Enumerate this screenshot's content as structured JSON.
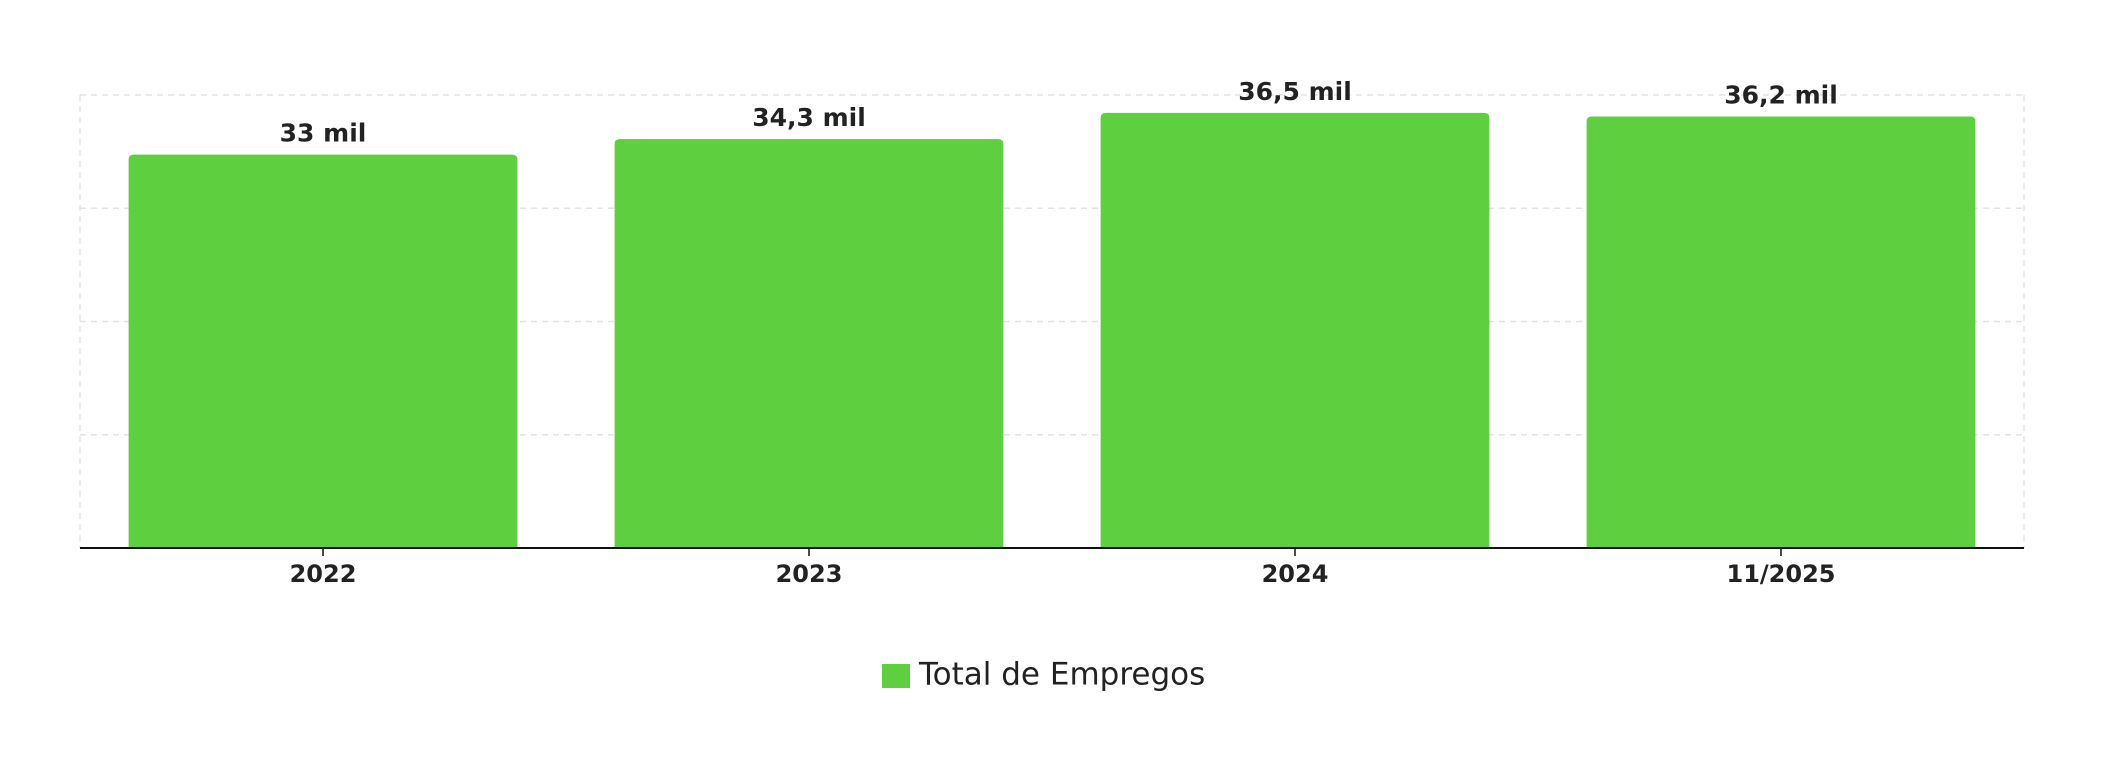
{
  "chart_data": {
    "type": "bar",
    "categories": [
      "2022",
      "2023",
      "2024",
      "11/2025"
    ],
    "series": [
      {
        "name": "Total de Empregos",
        "color": "#5ecf3e",
        "values": [
          33000,
          34300,
          36500,
          36200
        ],
        "value_labels": [
          "33 mil",
          "34,3 mil",
          "36,5 mil",
          "36,2 mil"
        ]
      }
    ],
    "ylim": [
      0,
      38000
    ],
    "yticks": [
      0,
      9500,
      19000,
      28500,
      38000
    ],
    "grid": true,
    "legend": "bottom"
  }
}
